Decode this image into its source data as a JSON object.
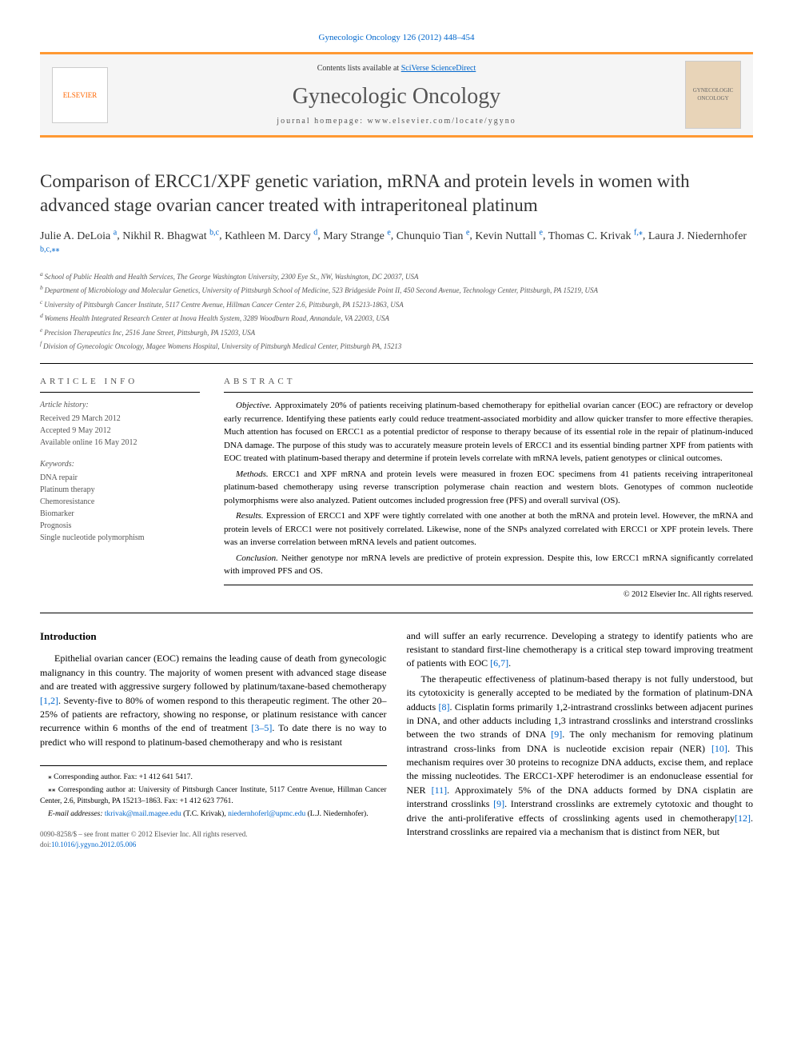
{
  "header": {
    "top_link": "Gynecologic Oncology 126 (2012) 448–454",
    "contents_prefix": "Contents lists available at ",
    "contents_link": "SciVerse ScienceDirect",
    "journal_name": "Gynecologic Oncology",
    "homepage_label": "journal homepage: www.elsevier.com/locate/ygyno",
    "publisher_logo": "ELSEVIER",
    "cover_label_top": "GYNECOLOGIC",
    "cover_label_bottom": "ONCOLOGY"
  },
  "article": {
    "title": "Comparison of ERCC1/XPF genetic variation, mRNA and protein levels in women with advanced stage ovarian cancer treated with intraperitoneal platinum",
    "authors": [
      {
        "name": "Julie A. DeLoia",
        "sup": "a"
      },
      {
        "name": "Nikhil R. Bhagwat",
        "sup": "b,c"
      },
      {
        "name": "Kathleen M. Darcy",
        "sup": "d"
      },
      {
        "name": "Mary Strange",
        "sup": "e"
      },
      {
        "name": "Chunquio Tian",
        "sup": "e"
      },
      {
        "name": "Kevin Nuttall",
        "sup": "e"
      },
      {
        "name": "Thomas C. Krivak",
        "sup": "f,⁎"
      },
      {
        "name": "Laura J. Niedernhofer",
        "sup": "b,c,⁎⁎"
      }
    ],
    "affiliations": [
      {
        "key": "a",
        "text": "School of Public Health and Health Services, The George Washington University, 2300 Eye St., NW, Washington, DC 20037, USA"
      },
      {
        "key": "b",
        "text": "Department of Microbiology and Molecular Genetics, University of Pittsburgh School of Medicine, 523 Bridgeside Point II, 450 Second Avenue, Technology Center, Pittsburgh, PA 15219, USA"
      },
      {
        "key": "c",
        "text": "University of Pittsburgh Cancer Institute, 5117 Centre Avenue, Hillman Cancer Center 2.6, Pittsburgh, PA 15213-1863, USA"
      },
      {
        "key": "d",
        "text": "Womens Health Integrated Research Center at Inova Health System, 3289 Woodburn Road, Annandale, VA 22003, USA"
      },
      {
        "key": "e",
        "text": "Precision Therapeutics Inc, 2516 Jane Street, Pittsburgh, PA 15203, USA"
      },
      {
        "key": "f",
        "text": "Division of Gynecologic Oncology, Magee Womens Hospital, University of Pittsburgh Medical Center, Pittsburgh PA, 15213"
      }
    ]
  },
  "info": {
    "heading": "article info",
    "history_title": "Article history:",
    "history": [
      "Received 29 March 2012",
      "Accepted 9 May 2012",
      "Available online 16 May 2012"
    ],
    "keywords_title": "Keywords:",
    "keywords": [
      "DNA repair",
      "Platinum therapy",
      "Chemoresistance",
      "Biomarker",
      "Prognosis",
      "Single nucleotide polymorphism"
    ]
  },
  "abstract": {
    "heading": "abstract",
    "sections": [
      {
        "label": "Objective.",
        "text": "Approximately 20% of patients receiving platinum-based chemotherapy for epithelial ovarian cancer (EOC) are refractory or develop early recurrence. Identifying these patients early could reduce treatment-associated morbidity and allow quicker transfer to more effective therapies. Much attention has focused on ERCC1 as a potential predictor of response to therapy because of its essential role in the repair of platinum-induced DNA damage. The purpose of this study was to accurately measure protein levels of ERCC1 and its essential binding partner XPF from patients with EOC treated with platinum-based therapy and determine if protein levels correlate with mRNA levels, patient genotypes or clinical outcomes."
      },
      {
        "label": "Methods.",
        "text": "ERCC1 and XPF mRNA and protein levels were measured in frozen EOC specimens from 41 patients receiving intraperitoneal platinum-based chemotherapy using reverse transcription polymerase chain reaction and western blots. Genotypes of common nucleotide polymorphisms were also analyzed. Patient outcomes included progression free (PFS) and overall survival (OS)."
      },
      {
        "label": "Results.",
        "text": "Expression of ERCC1 and XPF were tightly correlated with one another at both the mRNA and protein level. However, the mRNA and protein levels of ERCC1 were not positively correlated. Likewise, none of the SNPs analyzed correlated with ERCC1 or XPF protein levels. There was an inverse correlation between mRNA levels and patient outcomes."
      },
      {
        "label": "Conclusion.",
        "text": "Neither genotype nor mRNA levels are predictive of protein expression. Despite this, low ERCC1 mRNA significantly correlated with improved PFS and OS."
      }
    ],
    "copyright": "© 2012 Elsevier Inc. All rights reserved."
  },
  "main": {
    "intro_heading": "Introduction",
    "col1_p1": "Epithelial ovarian cancer (EOC) remains the leading cause of death from gynecologic malignancy in this country. The majority of women present with advanced stage disease and are treated with aggressive surgery followed by platinum/taxane-based chemotherapy [1,2]. Seventy-five to 80% of women respond to this therapeutic regiment. The other 20–25% of patients are refractory, showing no response, or platinum resistance with cancer recurrence within 6 months of the end of treatment [3–5]. To date there is no way to predict who will respond to platinum-based chemotherapy and who is resistant",
    "col2_p1": "and will suffer an early recurrence. Developing a strategy to identify patients who are resistant to standard first-line chemotherapy is a critical step toward improving treatment of patients with EOC [6,7].",
    "col2_p2": "The therapeutic effectiveness of platinum-based therapy is not fully understood, but its cytotoxicity is generally accepted to be mediated by the formation of platinum-DNA adducts [8]. Cisplatin forms primarily 1,2-intrastrand crosslinks between adjacent purines in DNA, and other adducts including 1,3 intrastrand crosslinks and interstrand crosslinks between the two strands of DNA [9]. The only mechanism for removing platinum intrastrand cross-links from DNA is nucleotide excision repair (NER) [10]. This mechanism requires over 30 proteins to recognize DNA adducts, excise them, and replace the missing nucleotides. The ERCC1-XPF heterodimer is an endonuclease essential for NER [11]. Approximately 5% of the DNA adducts formed by DNA cisplatin are interstrand crosslinks [9]. Interstrand crosslinks are extremely cytotoxic and thought to drive the anti-proliferative effects of crosslinking agents used in chemotherapy[12]. Interstrand crosslinks are repaired via a mechanism that is distinct from NER, but"
  },
  "footnotes": {
    "f1": "⁎ Corresponding author. Fax: +1 412 641 5417.",
    "f2": "⁎⁎ Corresponding author at: University of Pittsburgh Cancer Institute, 5117 Centre Avenue, Hillman Cancer Center, 2.6, Pittsburgh, PA 15213–1863. Fax: +1 412 623 7761.",
    "emails_label": "E-mail addresses:",
    "email1": "tkrivak@mail.magee.edu",
    "email1_attr": "(T.C. Krivak),",
    "email2": "niedernhoferl@upmc.edu",
    "email2_attr": "(L.J. Niedernhofer).",
    "meta1": "0090-8258/$ – see front matter © 2012 Elsevier Inc. All rights reserved.",
    "meta2_prefix": "doi:",
    "meta2_link": "10.1016/j.ygyno.2012.05.006"
  },
  "refs_in_text": {
    "r12": "[1,2]",
    "r35": "[3–5]",
    "r67": "[6,7]",
    "r8": "[8]",
    "r9": "[9]",
    "r10": "[10]",
    "r11": "[11]",
    "r12b": "[12]"
  }
}
